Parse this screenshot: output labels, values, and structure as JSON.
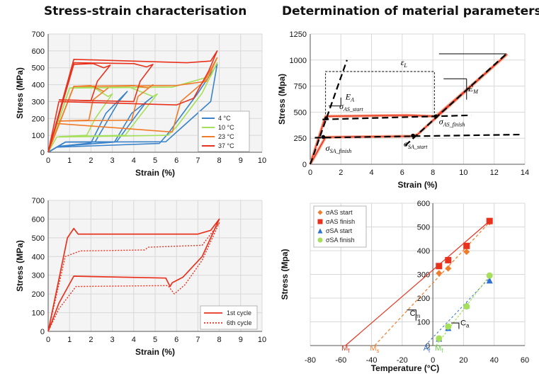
{
  "headings": {
    "left": "Stress-strain characterisation",
    "right": "Determination of material parameters"
  },
  "colors": {
    "c4": "#3b83c9",
    "c10": "#a6e05a",
    "c23": "#f07c2a",
    "c37": "#e8321e",
    "black": "#000000",
    "pink": "#f4a38a",
    "sa": "#2e6fd1",
    "sf": "#6ad04a"
  },
  "chart_data": [
    {
      "id": "temperature-curves",
      "type": "line",
      "xlabel": "Strain (%)",
      "ylabel": "Stress (MPa)",
      "xlim": [
        0,
        10
      ],
      "ylim": [
        0,
        700
      ],
      "xticks": [
        "0",
        "1",
        "2",
        "3",
        "4",
        "5",
        "6",
        "7",
        "8",
        "9",
        "10"
      ],
      "yticks": [
        "0",
        "100",
        "200",
        "300",
        "400",
        "500",
        "600",
        "700"
      ],
      "grid": true,
      "legend_position": "bottom-right",
      "series": [
        {
          "name": "4 °C",
          "color": "#3b83c9",
          "cycles": [
            [
              [
                0,
                0
              ],
              [
                0.8,
                60
              ],
              [
                5.5,
                62
              ],
              [
                7.6,
                300
              ],
              [
                7.9,
                520
              ],
              [
                7.0,
                350
              ],
              [
                5.6,
                110
              ],
              [
                5.2,
                52
              ],
              [
                0.4,
                30
              ],
              [
                0,
                0
              ]
            ],
            [
              [
                0,
                0
              ],
              [
                0.8,
                60
              ],
              [
                3.2,
                62
              ],
              [
                4.6,
                300
              ],
              [
                4.9,
                330
              ],
              [
                3.9,
                230
              ],
              [
                3.1,
                60
              ],
              [
                0.5,
                35
              ]
            ],
            [
              [
                0,
                0
              ],
              [
                0.8,
                60
              ],
              [
                2.2,
                62
              ],
              [
                3.3,
                300
              ],
              [
                3.7,
                360
              ],
              [
                2.7,
                230
              ],
              [
                2.0,
                55
              ],
              [
                0.5,
                35
              ]
            ]
          ]
        },
        {
          "name": "10 °C",
          "color": "#a6e05a",
          "cycles": [
            [
              [
                0,
                0
              ],
              [
                1.0,
                380
              ],
              [
                5.8,
                385
              ],
              [
                7.6,
                450
              ],
              [
                7.9,
                530
              ],
              [
                7.2,
                350
              ],
              [
                6.0,
                150
              ],
              [
                5.6,
                100
              ],
              [
                0.4,
                90
              ],
              [
                0,
                0
              ]
            ],
            [
              [
                0,
                0
              ],
              [
                1.0,
                380
              ],
              [
                3.8,
                385
              ],
              [
                4.9,
                330
              ],
              [
                5.1,
                345
              ],
              [
                4.2,
                200
              ],
              [
                3.6,
                100
              ],
              [
                0.5,
                92
              ]
            ],
            [
              [
                0,
                0
              ],
              [
                1.0,
                380
              ],
              [
                2.1,
                385
              ],
              [
                2.8,
                330
              ],
              [
                3.0,
                345
              ],
              [
                2.2,
                200
              ],
              [
                1.8,
                100
              ],
              [
                0.5,
                92
              ]
            ]
          ]
        },
        {
          "name": "23 °C",
          "color": "#f07c2a",
          "cycles": [
            [
              [
                0,
                0
              ],
              [
                1.2,
                390
              ],
              [
                6.0,
                395
              ],
              [
                7.4,
                420
              ],
              [
                7.9,
                560
              ],
              [
                7.3,
                420
              ],
              [
                6.2,
                300
              ],
              [
                5.8,
                120
              ],
              [
                0.4,
                170
              ],
              [
                0,
                0
              ]
            ],
            [
              [
                0,
                0
              ],
              [
                1.2,
                390
              ],
              [
                4.0,
                395
              ],
              [
                4.7,
                380
              ],
              [
                4.9,
                400
              ],
              [
                4.2,
                330
              ],
              [
                3.9,
                190
              ],
              [
                0.5,
                185
              ]
            ],
            [
              [
                0,
                0
              ],
              [
                1.2,
                390
              ],
              [
                2.0,
                395
              ],
              [
                2.6,
                360
              ],
              [
                2.8,
                380
              ],
              [
                2.1,
                310
              ],
              [
                1.9,
                190
              ],
              [
                0.5,
                185
              ]
            ]
          ]
        },
        {
          "name": "37 °C",
          "color": "#e8321e",
          "cycles": [
            [
              [
                0,
                0
              ],
              [
                1.2,
                550
              ],
              [
                6.5,
                530
              ],
              [
                7.6,
                540
              ],
              [
                7.9,
                600
              ],
              [
                7.5,
                480
              ],
              [
                6.8,
                320
              ],
              [
                6.0,
                280
              ],
              [
                0.5,
                300
              ],
              [
                0,
                0
              ]
            ],
            [
              [
                0,
                0
              ],
              [
                1.2,
                530
              ],
              [
                4.0,
                525
              ],
              [
                4.6,
                505
              ],
              [
                4.9,
                520
              ],
              [
                4.3,
                420
              ],
              [
                4.0,
                300
              ],
              [
                0.5,
                310
              ]
            ],
            [
              [
                0,
                0
              ],
              [
                1.2,
                520
              ],
              [
                2.1,
                525
              ],
              [
                2.6,
                500
              ],
              [
                2.9,
                515
              ],
              [
                2.3,
                420
              ],
              [
                2.0,
                305
              ],
              [
                0.5,
                310
              ]
            ]
          ]
        }
      ]
    },
    {
      "id": "parameter-determination",
      "type": "line",
      "xlabel": "Strain (%)",
      "ylabel": "Stress (Mpa)",
      "xlim": [
        0,
        14
      ],
      "ylim": [
        0,
        1250
      ],
      "xticks": [
        "0",
        "2",
        "4",
        "6",
        "8",
        "10",
        "12",
        "14"
      ],
      "yticks": [
        "0",
        "250",
        "500",
        "750",
        "1000",
        "1250"
      ],
      "grid": true,
      "annotations": {
        "eL": "εL",
        "EA": "EA",
        "EM": "EM",
        "AS_start": "σAS_start",
        "AS_finish": "σAS_finish",
        "SA_start": "σSA_start",
        "SA_finish": "σSA_finish"
      },
      "curve": [
        [
          0,
          0
        ],
        [
          1.0,
          460
        ],
        [
          6.3,
          470
        ],
        [
          8.2,
          460
        ],
        [
          12.8,
          1050
        ],
        [
          12.5,
          1010
        ],
        [
          8.0,
          420
        ],
        [
          7.0,
          285
        ],
        [
          6.6,
          270
        ],
        [
          1.0,
          260
        ],
        [
          0,
          0
        ]
      ]
    },
    {
      "id": "cycle-comparison",
      "type": "line",
      "xlabel": "Strain (%)",
      "ylabel": "Stress (MPa)",
      "xlim": [
        0,
        10
      ],
      "ylim": [
        0,
        700
      ],
      "xticks": [
        "0",
        "1",
        "2",
        "3",
        "4",
        "5",
        "6",
        "7",
        "8",
        "9",
        "10"
      ],
      "yticks": [
        "0",
        "100",
        "200",
        "300",
        "400",
        "500",
        "600",
        "700"
      ],
      "grid": true,
      "legend_position": "bottom-right",
      "series": [
        {
          "name": "1st cycle",
          "style": "solid",
          "color": "#e8321e",
          "points": [
            [
              0,
              0
            ],
            [
              0.9,
              500
            ],
            [
              1.2,
              550
            ],
            [
              1.4,
              520
            ],
            [
              7.0,
              520
            ],
            [
              7.6,
              540
            ],
            [
              8.0,
              600
            ],
            [
              7.2,
              400
            ],
            [
              6.3,
              290
            ],
            [
              5.8,
              260
            ],
            [
              5.7,
              240
            ],
            [
              5.5,
              285
            ],
            [
              1.2,
              295
            ],
            [
              0.5,
              150
            ],
            [
              0,
              0
            ]
          ]
        },
        {
          "name": "6th cycle",
          "style": "dashed",
          "color": "#e8321e",
          "points": [
            [
              0,
              0
            ],
            [
              0.8,
              400
            ],
            [
              1.5,
              430
            ],
            [
              4.5,
              435
            ],
            [
              4.7,
              450
            ],
            [
              7.2,
              460
            ],
            [
              8.0,
              580
            ],
            [
              7.2,
              380
            ],
            [
              6.4,
              250
            ],
            [
              5.9,
              200
            ],
            [
              5.6,
              245
            ],
            [
              1.3,
              240
            ],
            [
              0.5,
              120
            ],
            [
              0,
              0
            ]
          ]
        }
      ]
    },
    {
      "id": "temperature-dependence",
      "type": "scatter",
      "xlabel": "Temperature (°C)",
      "ylabel": "Stress (Mpa)",
      "xlim": [
        -80,
        60
      ],
      "ylim": [
        0,
        600
      ],
      "xticks": [
        "-80",
        "-60",
        "-40",
        "-20",
        "0",
        "20",
        "40",
        "60"
      ],
      "yticks": [
        "0",
        "100",
        "200",
        "300",
        "400",
        "500",
        "600"
      ],
      "grid": true,
      "legend_position": "top-left",
      "annotations": {
        "Cm": "Cm",
        "Ca": "Ca",
        "Mf": "Mf",
        "Ms": "Ms",
        "Af": "Af",
        "Mf2": "Mf"
      },
      "series": [
        {
          "name": "σAS start",
          "marker": "diamond",
          "color": "#f07c2a",
          "x": [
            4,
            10,
            22,
            37
          ],
          "y": [
            305,
            325,
            395,
            520
          ]
        },
        {
          "name": "σAS finish",
          "marker": "square",
          "color": "#e8321e",
          "x": [
            4,
            10,
            22,
            37
          ],
          "y": [
            335,
            360,
            420,
            525
          ]
        },
        {
          "name": "σSA start",
          "marker": "triangle",
          "color": "#2e6fd1",
          "x": [
            4,
            10,
            22,
            37
          ],
          "y": [
            30,
            75,
            170,
            275
          ]
        },
        {
          "name": "σSA finish",
          "marker": "circle",
          "color": "#a6e05a",
          "x": [
            4,
            10,
            22,
            37
          ],
          "y": [
            30,
            80,
            165,
            295
          ]
        }
      ]
    }
  ]
}
